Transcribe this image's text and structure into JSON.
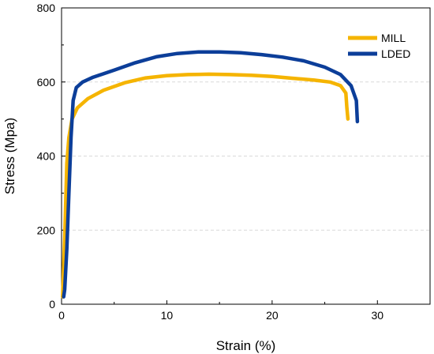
{
  "chart_data": {
    "type": "line",
    "title": "",
    "xlabel": "Strain (%)",
    "ylabel": "Stress (Mpa)",
    "xlim": [
      0,
      35
    ],
    "ylim": [
      0,
      800
    ],
    "xticks": [
      0,
      10,
      20,
      30
    ],
    "yticks": [
      0,
      200,
      400,
      600,
      800
    ],
    "grid": "horizontal dashed",
    "legend": "top-right",
    "series": [
      {
        "name": "MILL",
        "color": "#F5B400",
        "points": [
          [
            0.1,
            20
          ],
          [
            0.3,
            180
          ],
          [
            0.5,
            380
          ],
          [
            0.7,
            450
          ],
          [
            1.0,
            500
          ],
          [
            1.5,
            530
          ],
          [
            2.5,
            555
          ],
          [
            4,
            578
          ],
          [
            6,
            598
          ],
          [
            8,
            611
          ],
          [
            10,
            617
          ],
          [
            12,
            620
          ],
          [
            14,
            621
          ],
          [
            16,
            620
          ],
          [
            18,
            618
          ],
          [
            20,
            615
          ],
          [
            22,
            610
          ],
          [
            24,
            605
          ],
          [
            25.5,
            600
          ],
          [
            26.5,
            590
          ],
          [
            27.0,
            570
          ],
          [
            27.1,
            530
          ],
          [
            27.2,
            500
          ]
        ]
      },
      {
        "name": "LDED",
        "color": "#0C3E99",
        "points": [
          [
            0.2,
            20
          ],
          [
            0.3,
            40
          ],
          [
            0.5,
            150
          ],
          [
            0.7,
            300
          ],
          [
            0.9,
            450
          ],
          [
            1.1,
            550
          ],
          [
            1.4,
            585
          ],
          [
            2,
            600
          ],
          [
            3,
            613
          ],
          [
            5,
            632
          ],
          [
            7,
            652
          ],
          [
            9,
            668
          ],
          [
            11,
            677
          ],
          [
            13,
            681
          ],
          [
            15,
            681
          ],
          [
            17,
            679
          ],
          [
            19,
            674
          ],
          [
            21,
            667
          ],
          [
            23,
            657
          ],
          [
            25,
            640
          ],
          [
            26.5,
            620
          ],
          [
            27.5,
            590
          ],
          [
            28.0,
            550
          ],
          [
            28.1,
            493
          ]
        ]
      }
    ]
  }
}
